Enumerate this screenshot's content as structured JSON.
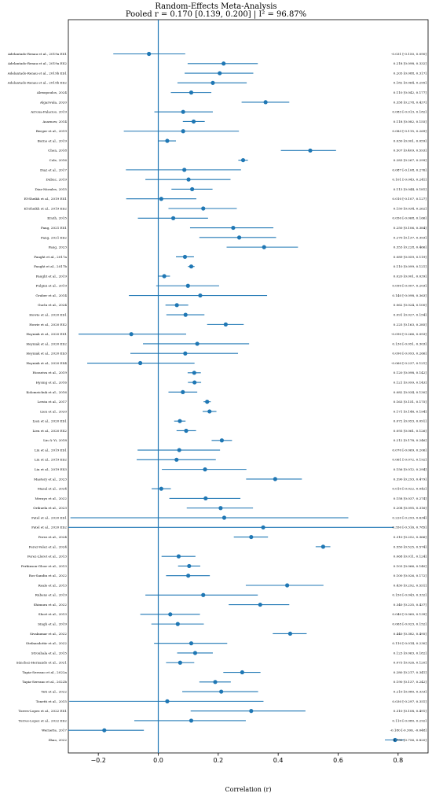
{
  "chart_data": {
    "type": "forest",
    "title": "Random-Effects Meta-Analysis",
    "subtitle": "Pooled r = 0.170 [0.139, 0.200] | I² = 96.87%",
    "xlabel": "Correlation (r)",
    "xlim": [
      -0.3,
      0.9
    ],
    "xticks": [
      -0.2,
      0.0,
      0.2,
      0.4,
      0.6,
      0.8
    ],
    "xtick_labels": [
      "−0.2",
      "0.0",
      "0.2",
      "0.4",
      "0.6",
      "0.8"
    ],
    "reference_line": 0.0,
    "color": "#1f77b4",
    "studies": [
      {
        "label": "Adelantado-Renau et al., 2019a ES1",
        "r": -0.031,
        "lo": -0.15,
        "hi": 0.09,
        "ci": "-0.031 [-0.150, 0.090]"
      },
      {
        "label": "Adelantado-Renau et al., 2019a ES2",
        "r": 0.218,
        "lo": 0.098,
        "hi": 0.332,
        "ci": "0.218 [0.098, 0.332]"
      },
      {
        "label": "Adelantado-Renau et al., 2019b ES1",
        "r": 0.205,
        "lo": 0.088,
        "hi": 0.317,
        "ci": "0.205 [0.088, 0.317]"
      },
      {
        "label": "Adelantado-Renau et al., 2019b ES2",
        "r": 0.182,
        "lo": 0.064,
        "hi": 0.295,
        "ci": "0.182 [0.064, 0.295]"
      },
      {
        "label": "Alexopoulos, 2024",
        "r": 0.11,
        "lo": 0.042,
        "hi": 0.177,
        "ci": "0.110 [0.042, 0.177]"
      },
      {
        "label": "Algarwala, 2020",
        "r": 0.358,
        "lo": 0.278,
        "hi": 0.437,
        "ci": "0.358 [0.278, 0.437]"
      },
      {
        "label": "Arrona-Palacios, 2019",
        "r": 0.083,
        "lo": -0.013,
        "hi": 0.182,
        "ci": "0.083 [-0.013, 0.182]"
      },
      {
        "label": "Asarnow, 2014",
        "r": 0.118,
        "lo": 0.082,
        "hi": 0.155,
        "ci": "0.118 [0.082, 0.155]"
      },
      {
        "label": "Berger et al., 2019",
        "r": 0.083,
        "lo": -0.115,
        "hi": 0.269,
        "ci": "0.083 [-0.115, 0.269]"
      },
      {
        "label": "Borno et al., 2019",
        "r": 0.03,
        "lo": 0.001,
        "hi": 0.059,
        "ci": "0.030 [0.001, 0.059]"
      },
      {
        "label": "Chen, 2018",
        "r": 0.507,
        "lo": 0.409,
        "hi": 0.593,
        "ci": "0.507 [0.409, 0.593]"
      },
      {
        "label": "Cole, 2016",
        "r": 0.283,
        "lo": 0.267,
        "hi": 0.299,
        "ci": "0.283 [0.267, 0.299]"
      },
      {
        "label": "Diaz et al., 2017",
        "r": 0.087,
        "lo": -0.108,
        "hi": 0.276,
        "ci": "0.087 [-0.108, 0.276]"
      },
      {
        "label": "Dubuc, 2019",
        "r": 0.101,
        "lo": -0.043,
        "hi": 0.241,
        "ci": "0.101 [-0.043, 0.241]"
      },
      {
        "label": "Diaz-Morales, 2015",
        "r": 0.113,
        "lo": 0.044,
        "hi": 0.181,
        "ci": "0.113 [0.044, 0.181]"
      },
      {
        "label": "El-Sheikh et al., 2019 ES1",
        "r": 0.01,
        "lo": -0.107,
        "hi": 0.127,
        "ci": "0.010 [-0.107, 0.127]"
      },
      {
        "label": "El-Sheikh et al., 2019 ES2",
        "r": 0.15,
        "lo": 0.034,
        "hi": 0.262,
        "ci": "0.150 [0.034, 0.262]"
      },
      {
        "label": "Erath, 2015",
        "r": 0.05,
        "lo": -0.068,
        "hi": 0.166,
        "ci": "0.050 [-0.068, 0.166]"
      },
      {
        "label": "Fang, 2021 ES1",
        "r": 0.25,
        "lo": 0.106,
        "hi": 0.384,
        "ci": "0.250 [0.106, 0.384]"
      },
      {
        "label": "Fang, 2021 ES2",
        "r": 0.27,
        "lo": 0.137,
        "hi": 0.393,
        "ci": "0.270 [0.137, 0.393]"
      },
      {
        "label": "Fang, 2023",
        "r": 0.353,
        "lo": 0.228,
        "hi": 0.466,
        "ci": "0.353 [0.228, 0.466]"
      },
      {
        "label": "Faught et al., 2017a",
        "r": 0.089,
        "lo": 0.059,
        "hi": 0.119,
        "ci": "0.089 [0.059, 0.119]"
      },
      {
        "label": "Faught et al., 2017b",
        "r": 0.11,
        "lo": 0.099,
        "hi": 0.121,
        "ci": "0.110 [0.099, 0.121]"
      },
      {
        "label": "Faught et al., 2019",
        "r": 0.02,
        "lo": 0.001,
        "hi": 0.039,
        "ci": "0.020 [0.001, 0.039]"
      },
      {
        "label": "Fulgini et al., 2019",
        "r": 0.099,
        "lo": -0.007,
        "hi": 0.203,
        "ci": "0.099 [-0.007, 0.203]"
      },
      {
        "label": "Gruber et al., 2014",
        "r": 0.14,
        "lo": -0.098,
        "hi": 0.363,
        "ci": "0.140 [-0.098, 0.363]"
      },
      {
        "label": "Guclu et al., 2024",
        "r": 0.062,
        "lo": 0.024,
        "hi": 0.1,
        "ci": "0.062 [0.024, 0.100]"
      },
      {
        "label": "Howie et al., 2020 ES1",
        "r": 0.091,
        "lo": 0.027,
        "hi": 0.154,
        "ci": "0.091 [0.027, 0.154]"
      },
      {
        "label": "Howie et al., 2020 ES2",
        "r": 0.225,
        "lo": 0.163,
        "hi": 0.285,
        "ci": "0.225 [0.163, 0.285]"
      },
      {
        "label": "Hoyniak et al., 2020 ES1",
        "r": -0.09,
        "lo": -0.266,
        "hi": 0.093,
        "ci": "-0.090 [-0.266, 0.093]"
      },
      {
        "label": "Hoyniak et al., 2020 ES2",
        "r": 0.13,
        "lo": -0.051,
        "hi": 0.303,
        "ci": "0.130 [-0.051, 0.303]"
      },
      {
        "label": "Hoyniak et al., 2020 ES3",
        "r": 0.09,
        "lo": -0.093,
        "hi": 0.266,
        "ci": "0.090 [-0.093, 0.266]"
      },
      {
        "label": "Hoyniak et al., 2020 ES4",
        "r": -0.06,
        "lo": -0.237,
        "hi": 0.121,
        "ci": "-0.060 [-0.237, 0.121]"
      },
      {
        "label": "Hosseiva et al., 2019",
        "r": 0.12,
        "lo": 0.098,
        "hi": 0.142,
        "ci": "0.120 [0.098, 0.142]"
      },
      {
        "label": "Hysing et al., 2016",
        "r": 0.121,
        "lo": 0.099,
        "hi": 0.143,
        "ci": "0.121 [0.099, 0.143]"
      },
      {
        "label": "Kolomeichuk et al., 2016",
        "r": 0.082,
        "lo": 0.034,
        "hi": 0.13,
        "ci": "0.082 [0.034, 0.130]"
      },
      {
        "label": "Lewin et al., 2017",
        "r": 0.163,
        "lo": 0.151,
        "hi": 0.175,
        "ci": "0.163 [0.151, 0.175]"
      },
      {
        "label": "Lien et al., 2020",
        "r": 0.171,
        "lo": 0.148,
        "hi": 0.194,
        "ci": "0.171 [0.148, 0.194]"
      },
      {
        "label": "Lien et al., 2020 ES1",
        "r": 0.072,
        "lo": 0.053,
        "hi": 0.091,
        "ci": "0.072 [0.053, 0.091]"
      },
      {
        "label": "Lien et al., 2020 ES2",
        "r": 0.093,
        "lo": 0.061,
        "hi": 0.126,
        "ci": "0.093 [0.061, 0.126]"
      },
      {
        "label": "Lin & Yi, 2018",
        "r": 0.212,
        "lo": 0.178,
        "hi": 0.246,
        "ci": "0.212 [0.178, 0.246]"
      },
      {
        "label": "Liu et al., 2019 ES1",
        "r": 0.07,
        "lo": -0.069,
        "hi": 0.206,
        "ci": "0.070 [-0.069, 0.206]"
      },
      {
        "label": "Liu et al., 2019 ES2",
        "r": 0.061,
        "lo": -0.072,
        "hi": 0.192,
        "ci": "0.061 [-0.072, 0.192]"
      },
      {
        "label": "Liu et al., 2019 ES3",
        "r": 0.156,
        "lo": 0.012,
        "hi": 0.294,
        "ci": "0.156 [0.012, 0.294]"
      },
      {
        "label": "Mastery et al., 2023",
        "r": 0.39,
        "lo": 0.293,
        "hi": 0.479,
        "ci": "0.390 [0.293, 0.479]"
      },
      {
        "label": "Masal et al., 2024",
        "r": 0.01,
        "lo": -0.022,
        "hi": 0.042,
        "ci": "0.010 [-0.022, 0.042]"
      },
      {
        "label": "Merayo et al., 2022",
        "r": 0.158,
        "lo": 0.037,
        "hi": 0.274,
        "ci": "0.158 [0.037, 0.274]"
      },
      {
        "label": "Orihuela et al., 2023",
        "r": 0.208,
        "lo": 0.095,
        "hi": 0.316,
        "ci": "0.208 [0.095, 0.316]"
      },
      {
        "label": "Patel et al., 2020 ES1",
        "r": 0.22,
        "lo": -0.293,
        "hi": 0.634,
        "ci": "0.220 [-0.293, 0.634]"
      },
      {
        "label": "Patel et al., 2020 ES2",
        "r": 0.35,
        "lo": -0.316,
        "hi": 0.785,
        "ci": "0.350 [-0.316, 0.785]"
      },
      {
        "label": "Perez et al., 2024",
        "r": 0.31,
        "lo": 0.252,
        "hi": 0.366,
        "ci": "0.310 [0.252, 0.366]"
      },
      {
        "label": "Perez-Velez et al., 2024",
        "r": 0.55,
        "lo": 0.525,
        "hi": 0.574,
        "ci": "0.550 [0.525, 0.574]"
      },
      {
        "label": "Perez-Lloret et al., 2013",
        "r": 0.068,
        "lo": 0.011,
        "hi": 0.124,
        "ci": "0.068 [0.011, 0.124]"
      },
      {
        "label": "Perkinson-Gloor et al., 2013",
        "r": 0.103,
        "lo": 0.066,
        "hi": 0.14,
        "ci": "0.103 [0.066, 0.140]"
      },
      {
        "label": "Ros-Sandin et al., 2022",
        "r": 0.1,
        "lo": 0.026,
        "hi": 0.172,
        "ci": "0.100 [0.026, 0.172]"
      },
      {
        "label": "Reale et al., 2013",
        "r": 0.43,
        "lo": 0.292,
        "hi": 0.551,
        "ci": "0.430 [0.292, 0.551]"
      },
      {
        "label": "Rubens et al., 2019",
        "r": 0.15,
        "lo": -0.043,
        "hi": 0.332,
        "ci": "0.150 [-0.043, 0.332]"
      },
      {
        "label": "Shimura et al., 2022",
        "r": 0.34,
        "lo": 0.235,
        "hi": 0.437,
        "ci": "0.340 [0.235, 0.437]"
      },
      {
        "label": "Short et al., 2013",
        "r": 0.04,
        "lo": -0.06,
        "hi": 0.139,
        "ci": "0.040 [-0.060, 0.139]"
      },
      {
        "label": "Singh et al., 2019",
        "r": 0.065,
        "lo": -0.023,
        "hi": 0.152,
        "ci": "0.065 [-0.023, 0.152]"
      },
      {
        "label": "Sivakumar et al., 2022",
        "r": 0.44,
        "lo": 0.382,
        "hi": 0.495,
        "ci": "0.440 [0.382, 0.495]"
      },
      {
        "label": "Stefansdottir et al., 2022",
        "r": 0.11,
        "lo": -0.014,
        "hi": 0.23,
        "ci": "0.110 [-0.014, 0.230]"
      },
      {
        "label": "Strouhala et al., 2015",
        "r": 0.123,
        "lo": 0.063,
        "hi": 0.182,
        "ci": "0.123 [0.063, 0.182]"
      },
      {
        "label": "Sánchez-Hernando et al., 2021",
        "r": 0.073,
        "lo": 0.026,
        "hi": 0.12,
        "ci": "0.073 [0.026, 0.120]"
      },
      {
        "label": "Tapia-Serrano et al., 2022a",
        "r": 0.28,
        "lo": 0.217,
        "hi": 0.341,
        "ci": "0.280 [0.217, 0.341]"
      },
      {
        "label": "Tapia-Serrano et al., 2022b",
        "r": 0.19,
        "lo": 0.137,
        "hi": 0.242,
        "ci": "0.190 [0.137, 0.242]"
      },
      {
        "label": "Teti et al., 2022",
        "r": 0.21,
        "lo": 0.08,
        "hi": 0.333,
        "ci": "0.210 [0.080, 0.333]"
      },
      {
        "label": "Tonetti et al., 2015",
        "r": 0.03,
        "lo": -0.297,
        "hi": 0.351,
        "ci": "0.030 [-0.297, 0.351]"
      },
      {
        "label": "Torres-Lopez et al., 2022 ES1",
        "r": 0.31,
        "lo": 0.108,
        "hi": 0.491,
        "ci": "0.310 [0.108, 0.491]"
      },
      {
        "label": "Torres-Lopez et al., 2022 ES2",
        "r": 0.11,
        "lo": -0.08,
        "hi": 0.292,
        "ci": "0.110 [-0.080, 0.292]"
      },
      {
        "label": "Wernette, 2017",
        "r": -0.18,
        "lo": -0.306,
        "hi": -0.048,
        "ci": "-0.180 [-0.306, -0.048]"
      },
      {
        "label": "Zhao, 2022",
        "r": 0.79,
        "lo": 0.756,
        "hi": 0.82,
        "ci": "0.790 [0.756, 0.820]"
      }
    ]
  }
}
